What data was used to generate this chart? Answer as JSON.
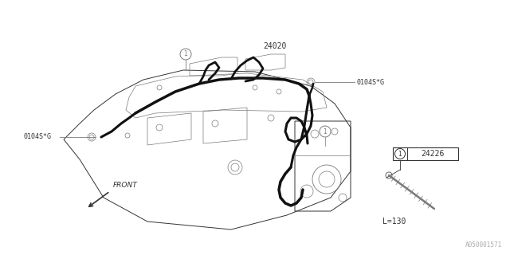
{
  "bg_color": "#ffffff",
  "line_color": "#7a7a7a",
  "dark_line": "#333333",
  "thick_wire": "#111111",
  "part_24020": "24020",
  "part_24226": "24226",
  "part_0104SG": "0104S*G",
  "label_L": "L=130",
  "label_front": "FRONT",
  "watermark": "A050001571",
  "fig_width": 6.4,
  "fig_height": 3.2,
  "dpi": 100
}
